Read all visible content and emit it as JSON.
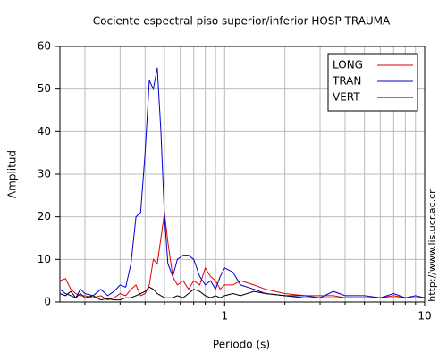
{
  "chart_data": {
    "type": "line",
    "title": "Cociente espectral piso superior/inferior  HOSP TRAUMA",
    "x_label": "Periodo (s)",
    "y_label": "Amplitud",
    "annotation": "http://www.lis.ucr.ac.cr",
    "x": [
      0.15,
      0.16,
      0.17,
      0.18,
      0.19,
      0.2,
      0.22,
      0.24,
      0.26,
      0.28,
      0.3,
      0.32,
      0.34,
      0.36,
      0.38,
      0.4,
      0.42,
      0.44,
      0.46,
      0.48,
      0.5,
      0.52,
      0.55,
      0.58,
      0.62,
      0.66,
      0.7,
      0.75,
      0.8,
      0.85,
      0.9,
      0.95,
      1.0,
      1.1,
      1.2,
      1.4,
      1.6,
      2.0,
      2.5,
      3.0,
      3.5,
      4.0,
      5.0,
      6.0,
      7.0,
      8.0,
      9.0,
      10
    ],
    "series": [
      {
        "name": "LONG",
        "color": "#e00000",
        "values": [
          5,
          5.5,
          3,
          2,
          1.5,
          1.5,
          1,
          1.5,
          0.5,
          1,
          2,
          1.5,
          3,
          4,
          1.5,
          2,
          4,
          10,
          9,
          15,
          21,
          14,
          6,
          4,
          5,
          3,
          5,
          4,
          8,
          6,
          5,
          3,
          4,
          4,
          5,
          4,
          3,
          2,
          1.5,
          1.5,
          1.5,
          1,
          1,
          1,
          1.5,
          1,
          1,
          1
        ]
      },
      {
        "name": "TRAN",
        "color": "#0000d0",
        "values": [
          3,
          2,
          1.5,
          1,
          3,
          2,
          1.5,
          3,
          1.5,
          2.5,
          4,
          3.5,
          9,
          20,
          21,
          35,
          52,
          50,
          55,
          40,
          20,
          9,
          6,
          10,
          11,
          11,
          10,
          6,
          4,
          5,
          3,
          6,
          8,
          7,
          4,
          3,
          2,
          1.5,
          1.5,
          1,
          2.5,
          1.5,
          1.5,
          1,
          2,
          1,
          1.5,
          1
        ]
      },
      {
        "name": "VERT",
        "color": "#000000",
        "values": [
          2,
          1.5,
          2.5,
          1,
          2,
          1,
          1.5,
          0.5,
          0.8,
          0.5,
          0.5,
          1,
          1,
          1.5,
          2,
          2.5,
          3.5,
          3,
          2,
          1.5,
          1,
          1,
          1,
          1.5,
          1,
          2,
          3,
          2.5,
          1.5,
          1,
          1.5,
          1,
          1.5,
          2,
          1.5,
          2.5,
          2,
          1.5,
          1,
          1,
          1,
          1,
          1,
          1,
          1,
          1,
          1,
          1
        ]
      }
    ],
    "xlim": [
      0.15,
      10
    ],
    "xscale": "log",
    "xticks": [
      1,
      10
    ],
    "xminor": [
      0.2,
      0.3,
      0.4,
      0.5,
      0.6,
      0.7,
      0.8,
      0.9,
      2,
      3,
      4,
      5,
      6,
      7,
      8,
      9
    ],
    "ylim": [
      0,
      60
    ],
    "yticks": [
      0,
      10,
      20,
      30,
      40,
      50,
      60
    ],
    "grid": true,
    "legend": "upper right"
  }
}
